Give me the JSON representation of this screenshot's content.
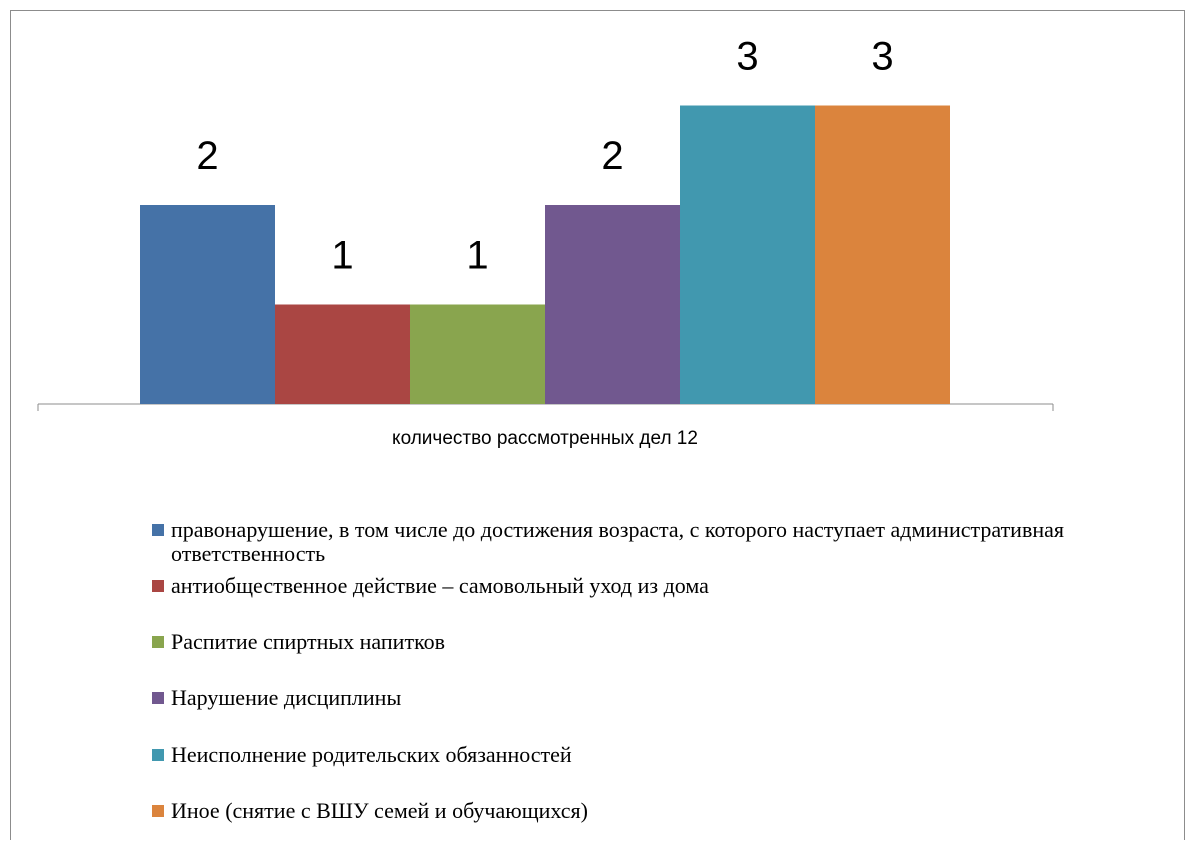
{
  "chart_data": {
    "type": "bar",
    "categories": [
      "количество рассмотренных дел 12"
    ],
    "series": [
      {
        "name": "правонарушение, в том числе до достижения возраста, с которого наступает административная ответственность",
        "values": [
          2
        ],
        "color": "#4572a7"
      },
      {
        "name": "антиобщественное действие – самовольный уход из дома",
        "values": [
          1
        ],
        "color": "#aa4643"
      },
      {
        "name": "Распитие спиртных напитков",
        "values": [
          1
        ],
        "color": "#89a54e"
      },
      {
        "name": "Нарушение дисциплины",
        "values": [
          2
        ],
        "color": "#71588f"
      },
      {
        "name": "Неисполнение родительских обязанностей",
        "values": [
          3
        ],
        "color": "#4198af"
      },
      {
        "name": "Иное (снятие с ВШУ семей и обучающихся)",
        "values": [
          3
        ],
        "color": "#db843d"
      }
    ],
    "data_labels": [
      "2",
      "1",
      "1",
      "2",
      "3",
      "3"
    ],
    "ylim": [
      0,
      3
    ],
    "gridlines": false,
    "legend_position": "bottom"
  }
}
